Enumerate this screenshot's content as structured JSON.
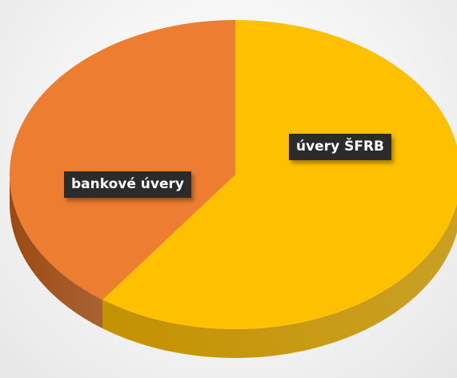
{
  "chart_data": {
    "type": "pie",
    "title": "",
    "style": "3d",
    "start_angle_deg": 90,
    "direction": "clockwise",
    "legend": "none",
    "slices": [
      {
        "label": "bankové úvery",
        "value": 0.6,
        "color": "#FFC000",
        "side_color": "#C49200"
      },
      {
        "label": "úvery ŠFRB",
        "value": 0.4,
        "color": "#ED7D31",
        "side_color": "#9C4A12"
      }
    ]
  }
}
